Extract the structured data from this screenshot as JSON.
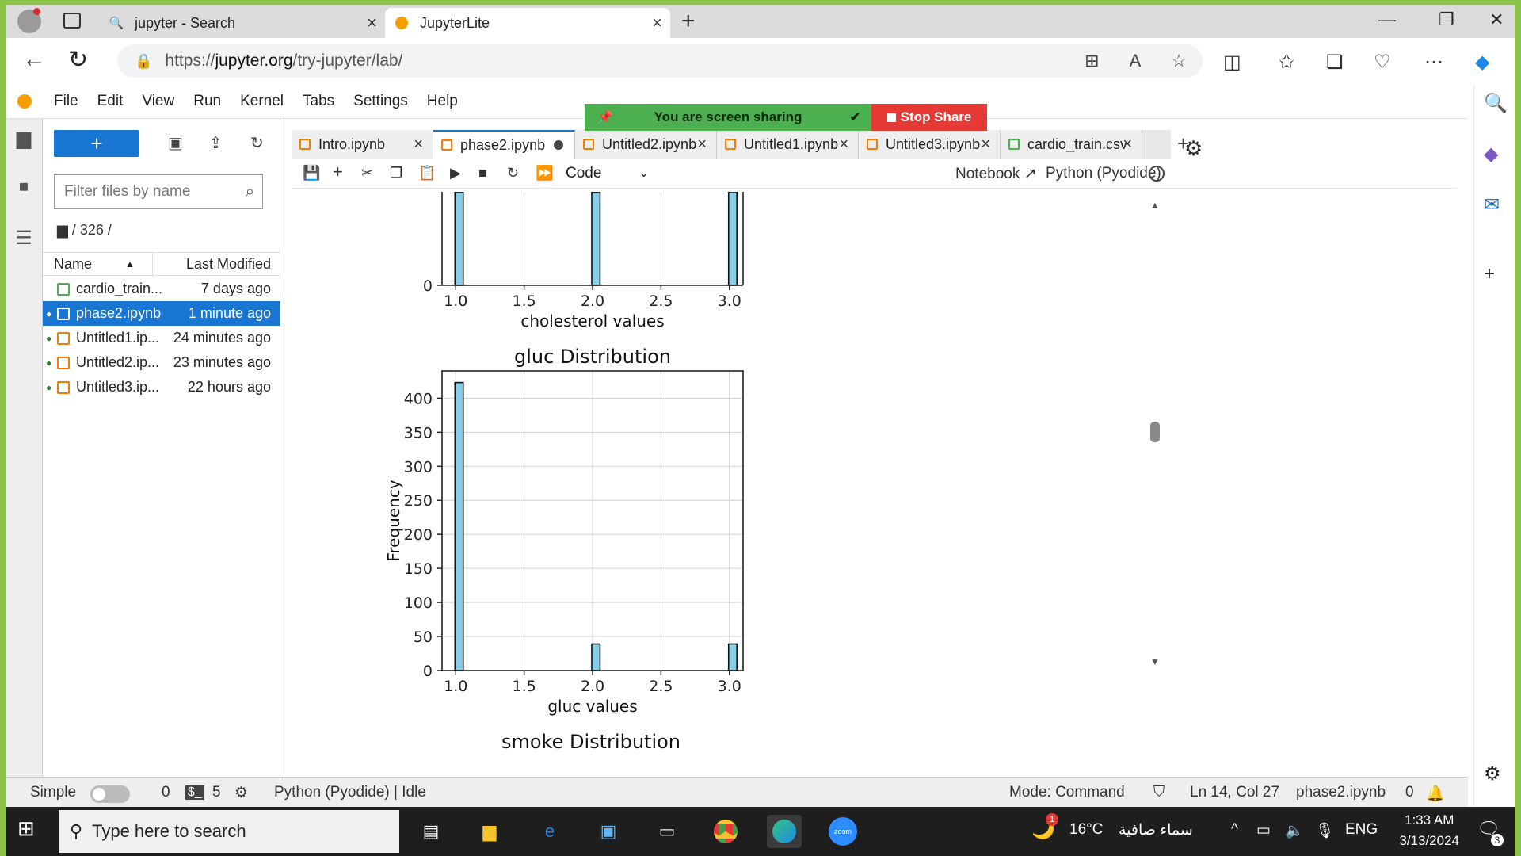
{
  "browser": {
    "tabs": [
      {
        "title": "jupyter - Search",
        "icon": "search-icon"
      },
      {
        "title": "JupyterLite",
        "icon": "jupyter-logo-icon"
      }
    ],
    "url_prefix": "https://",
    "url_domain": "jupyter.org",
    "url_path": "/try-jupyter/lab/"
  },
  "screenshare": {
    "message": "You are screen sharing",
    "stop_label": "Stop Share"
  },
  "jupyter": {
    "menu": [
      "File",
      "Edit",
      "View",
      "Run",
      "Kernel",
      "Tabs",
      "Settings",
      "Help"
    ],
    "filebrowser": {
      "new_label": "+",
      "filter_placeholder": "Filter files by name",
      "breadcrumb": "/ 326 /",
      "col_name": "Name",
      "col_modified": "Last Modified",
      "files": [
        {
          "name": "cardio_train...",
          "modified": "7 days ago",
          "type": "csv",
          "running": false
        },
        {
          "name": "phase2.ipynb",
          "modified": "1 minute ago",
          "type": "notebook",
          "running": true,
          "selected": true
        },
        {
          "name": "Untitled1.ip...",
          "modified": "24 minutes ago",
          "type": "notebook",
          "running": true
        },
        {
          "name": "Untitled2.ip...",
          "modified": "23 minutes ago",
          "type": "notebook",
          "running": true
        },
        {
          "name": "Untitled3.ip...",
          "modified": "22 hours ago",
          "type": "notebook",
          "running": true
        }
      ]
    },
    "doc_tabs": [
      {
        "title": "Intro.ipynb",
        "type": "notebook"
      },
      {
        "title": "phase2.ipynb",
        "type": "notebook",
        "active": true,
        "dirty": true
      },
      {
        "title": "Untitled2.ipynb",
        "type": "notebook"
      },
      {
        "title": "Untitled1.ipynb",
        "type": "notebook"
      },
      {
        "title": "Untitled3.ipynb",
        "type": "notebook"
      },
      {
        "title": "cardio_train.csv",
        "type": "csv"
      }
    ],
    "toolbar": {
      "cell_type": "Code",
      "notebook_label": "Notebook",
      "kernel_label": "Python (Pyodide)"
    },
    "status": {
      "simple_label": "Simple",
      "terminals": "0",
      "kernels": "5",
      "kernel_status": "Python (Pyodide) | Idle",
      "mode": "Mode: Command",
      "position": "Ln 14, Col 27",
      "file": "phase2.ipynb",
      "notifications": "0"
    }
  },
  "chart_data": [
    {
      "type": "bar",
      "title": "",
      "xlabel": "cholesterol values",
      "ylabel": "",
      "x_ticks": [
        "1.0",
        "1.5",
        "2.0",
        "2.5",
        "3.0"
      ],
      "y_ticks": [
        "0"
      ],
      "bins": [
        {
          "x": 1.0
        },
        {
          "x": 2.0
        },
        {
          "x": 3.0
        }
      ],
      "partial": true
    },
    {
      "type": "bar",
      "title": "gluc Distribution",
      "xlabel": "gluc values",
      "ylabel": "Frequency",
      "xlim": [
        0.9,
        3.1
      ],
      "ylim": [
        0,
        440
      ],
      "x_ticks": [
        "1.0",
        "1.5",
        "2.0",
        "2.5",
        "3.0"
      ],
      "y_ticks": [
        "0",
        "50",
        "100",
        "150",
        "200",
        "250",
        "300",
        "350",
        "400"
      ],
      "bins": [
        {
          "x": 1.0,
          "value": 423
        },
        {
          "x": 2.0,
          "value": 39
        },
        {
          "x": 3.0,
          "value": 39
        }
      ],
      "bar_color": "#87ceeb",
      "grid": true
    },
    {
      "type": "bar",
      "title": "smoke Distribution",
      "partial": true
    }
  ],
  "taskbar": {
    "search_placeholder": "Type here to search",
    "weather_temp": "16°C",
    "weather_desc": "سماء صافية",
    "weather_badge": "1",
    "language": "ENG",
    "time": "1:33 AM",
    "date": "3/13/2024",
    "notif_count": "3"
  }
}
